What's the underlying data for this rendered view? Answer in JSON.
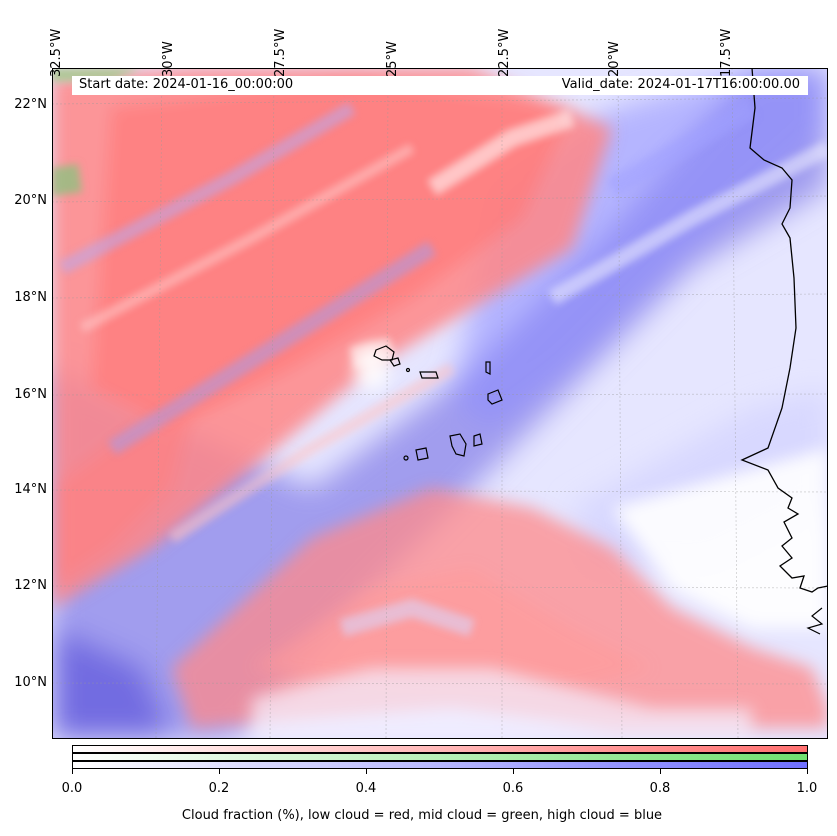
{
  "info": {
    "start_date": "Start date: 2024-01-16_00:00:00",
    "valid_date": "Valid_date: 2024-01-17T16:00:00.00"
  },
  "longitude_labels": [
    "32.5°W",
    "30°W",
    "27.5°W",
    "25°W",
    "22.5°W",
    "20°W",
    "17.5°W"
  ],
  "latitude_labels": [
    "22°N",
    "20°N",
    "18°N",
    "16°N",
    "14°N",
    "12°N",
    "10°N"
  ],
  "colorbar": {
    "ticks": [
      "0.0",
      "0.2",
      "0.4",
      "0.6",
      "0.8",
      "1.0"
    ],
    "label": "Cloud fraction (%), low cloud = red, mid cloud = green, high cloud = blue",
    "colors": {
      "low": "#ff7070",
      "mid": "#70e070",
      "high": "#7070ff"
    }
  }
}
